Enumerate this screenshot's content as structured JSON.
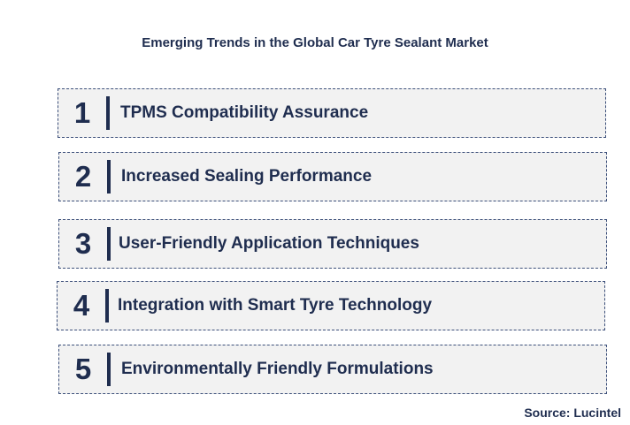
{
  "title": "Emerging Trends in the Global Car Tyre Sealant Market",
  "trends": [
    {
      "number": "1",
      "label": "TPMS Compatibility Assurance"
    },
    {
      "number": "2",
      "label": "Increased Sealing Performance"
    },
    {
      "number": "3",
      "label": "User-Friendly Application Techniques"
    },
    {
      "number": "4",
      "label": "Integration with Smart Tyre Technology"
    },
    {
      "number": "5",
      "label": "Environmentally Friendly Formulations"
    }
  ],
  "source": "Source: Lucintel",
  "colors": {
    "text": "#1f2d4f",
    "row_background": "#f2f2f2",
    "row_border": "#3c4f7a"
  }
}
